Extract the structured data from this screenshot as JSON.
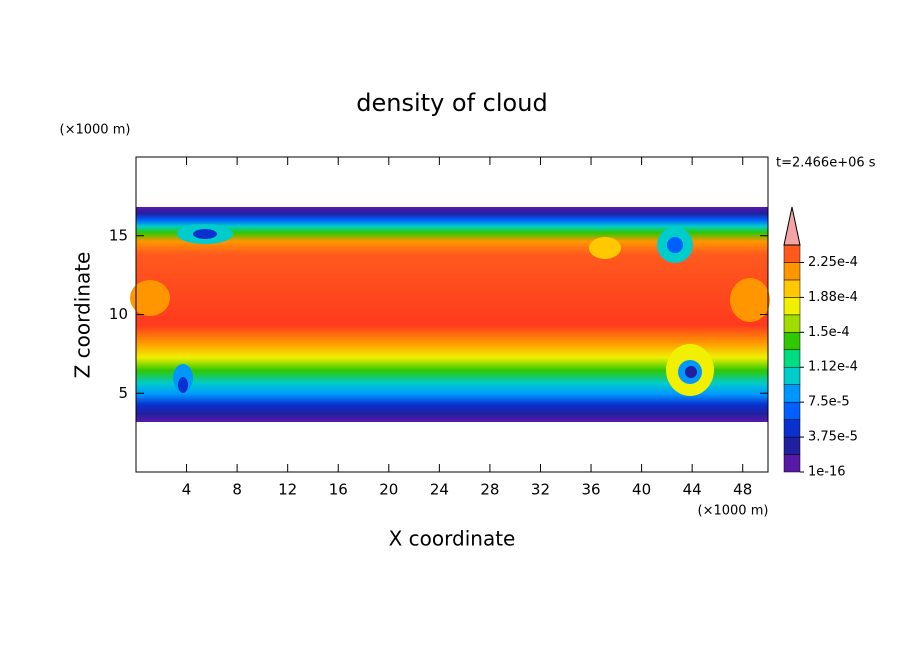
{
  "chart_data": {
    "type": "contour",
    "title": "density of cloud",
    "x_label": "X coordinate",
    "y_label": "Z coordinate",
    "x_unit": "(×1000 m)",
    "y_unit": "(×1000 m)",
    "time_label": "t=2.466e+06 s",
    "xlim": [
      0,
      50
    ],
    "ylim": [
      0,
      20
    ],
    "xticks": [
      4,
      8,
      12,
      16,
      20,
      24,
      28,
      32,
      36,
      40,
      44,
      48
    ],
    "yticks": [
      5,
      10,
      15
    ],
    "colorbar": {
      "levels": [
        1e-16,
        1.875e-05,
        3.75e-05,
        5.625e-05,
        7.5e-05,
        9.375e-05,
        0.0001125,
        0.00013125,
        0.00015,
        0.00016875,
        0.0001875,
        0.00020625,
        0.000225,
        0.00024375
      ],
      "colors": [
        "#5a18a8",
        "#2020a0",
        "#0a30d0",
        "#0060ff",
        "#0098ff",
        "#00cccc",
        "#00dc80",
        "#30c800",
        "#a0dc00",
        "#f0f000",
        "#ffc800",
        "#ff9600",
        "#ff5a1e"
      ],
      "over_color": "#f4a4a4",
      "ticks": [
        {
          "value": 0.000225,
          "label": "2.25e-4"
        },
        {
          "value": 0.0001875,
          "label": "1.88e-4"
        },
        {
          "value": 0.00015,
          "label": "1.5e-4"
        },
        {
          "value": 0.0001125,
          "label": "1.12e-4"
        },
        {
          "value": 7.5e-05,
          "label": "7.5e-5"
        },
        {
          "value": 3.75e-05,
          "label": "3.75e-5"
        },
        {
          "value": 1e-16,
          "label": "1e-16"
        }
      ]
    }
  }
}
